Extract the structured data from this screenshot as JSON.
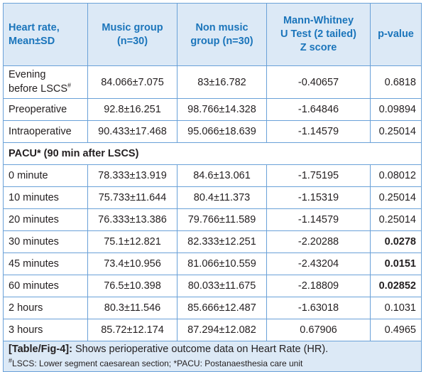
{
  "headers": [
    "Heart rate,\nMean±SD",
    "Music group\n(n=30)",
    "Non music\ngroup (n=30)",
    "Mann-Whitney\nU Test (2 tailed)\nZ score",
    "p-value"
  ],
  "rows_pre": [
    {
      "label": "Evening\nbefore LSCS",
      "label_sup": "#",
      "music": "84.066±7.075",
      "nonmusic": "83±16.782",
      "z": "-0.40657",
      "p": "0.6818",
      "p_bold": false
    },
    {
      "label": "Preoperative",
      "label_sup": "",
      "music": "92.8±16.251",
      "nonmusic": "98.766±14.328",
      "z": "-1.64846",
      "p": "0.09894",
      "p_bold": false
    },
    {
      "label": "Intraoperative",
      "label_sup": "",
      "music": "90.433±17.468",
      "nonmusic": "95.066±18.639",
      "z": "-1.14579",
      "p": "0.25014",
      "p_bold": false
    }
  ],
  "section_label": "PACU* (90 min after LSCS)",
  "rows_pacu": [
    {
      "label": "0 minute",
      "music": "78.333±13.919",
      "nonmusic": "84.6±13.061",
      "z": "-1.75195",
      "p": "0.08012",
      "p_bold": false
    },
    {
      "label": "10 minutes",
      "music": "75.733±11.644",
      "nonmusic": "80.4±11.373",
      "z": "-1.15319",
      "p": "0.25014",
      "p_bold": false
    },
    {
      "label": "20 minutes",
      "music": "76.333±13.386",
      "nonmusic": "79.766±11.589",
      "z": "-1.14579",
      "p": "0.25014",
      "p_bold": false
    },
    {
      "label": "30 minutes",
      "music": "75.1±12.821",
      "nonmusic": "82.333±12.251",
      "z": "-2.20288",
      "p": "0.0278",
      "p_bold": true
    },
    {
      "label": "45 minutes",
      "music": "73.4±10.956",
      "nonmusic": "81.066±10.559",
      "z": "-2.43204",
      "p": "0.0151",
      "p_bold": true
    },
    {
      "label": "60 minutes",
      "music": "76.5±10.398",
      "nonmusic": "80.033±11.675",
      "z": "-2.18809",
      "p": "0.02852",
      "p_bold": true
    },
    {
      "label": "2 hours",
      "music": "80.3±11.546",
      "nonmusic": "85.666±12.487",
      "z": "-1.63018",
      "p": "0.1031",
      "p_bold": false
    },
    {
      "label": "3 hours",
      "music": "85.72±12.174",
      "nonmusic": "87.294±12.082",
      "z": "0.67906",
      "p": "0.4965",
      "p_bold": false
    }
  ],
  "caption": {
    "tag": "[Table/Fig-4]:",
    "text": " Shows perioperative outcome data on Heart Rate (HR).",
    "footnote_sup": "#",
    "footnote": "LSCS: Lower segment caesarean section; *PACU: Postanaesthesia care unit"
  }
}
